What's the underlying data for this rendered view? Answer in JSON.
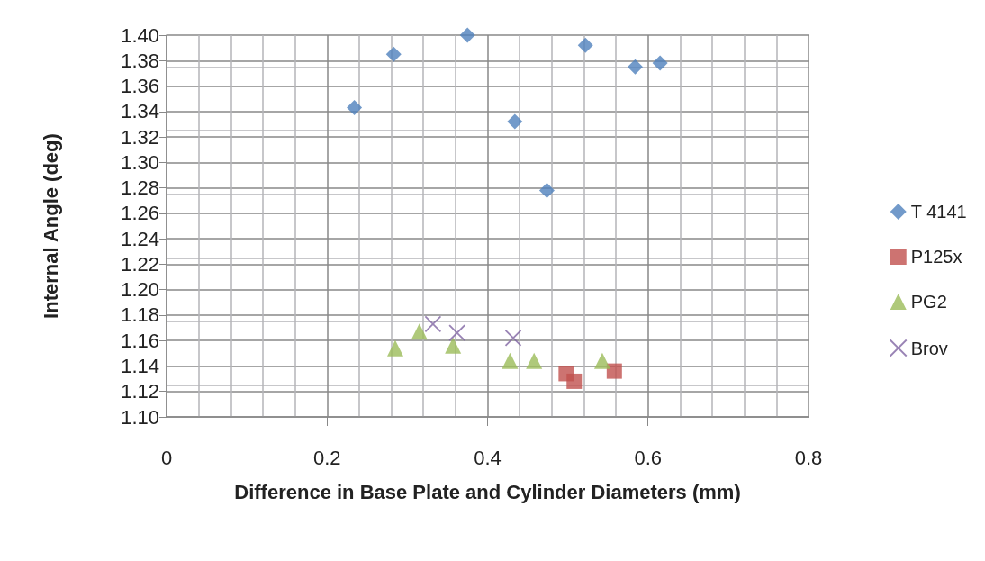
{
  "chart_data": {
    "type": "scatter",
    "xlabel": "Difference in Base Plate and Cylinder Diameters (mm)",
    "ylabel": "Internal Angle (deg)",
    "xlim": [
      0,
      0.8
    ],
    "xticks": [
      0,
      {
        "value": 0.2,
        "label": "0.2"
      },
      {
        "value": 0.4,
        "label": "0.4"
      },
      {
        "value": 0.6,
        "label": "0.6"
      },
      {
        "value": 0.8,
        "label": "0.8"
      }
    ],
    "ylim": [
      1.1,
      1.4
    ],
    "yticks": [
      {
        "value": 1.1,
        "label": "1.10"
      },
      {
        "value": 1.12,
        "label": "1.12"
      },
      {
        "value": 1.14,
        "label": "1.14"
      },
      {
        "value": 1.16,
        "label": "1.16"
      },
      {
        "value": 1.18,
        "label": "1.18"
      },
      {
        "value": 1.2,
        "label": "1.20"
      },
      {
        "value": 1.22,
        "label": "1.22"
      },
      {
        "value": 1.24,
        "label": "1.24"
      },
      {
        "value": 1.26,
        "label": "1.26"
      },
      {
        "value": 1.28,
        "label": "1.28"
      },
      {
        "value": 1.3,
        "label": "1.30"
      },
      {
        "value": 1.32,
        "label": "1.32"
      },
      {
        "value": 1.34,
        "label": "1.34"
      },
      {
        "value": 1.36,
        "label": "1.36"
      },
      {
        "value": 1.38,
        "label": "1.38"
      },
      {
        "value": 1.4,
        "label": "1.40"
      }
    ],
    "grid": true,
    "legend": "right",
    "series": [
      {
        "name": "T 4141",
        "color": "#4f81bd",
        "marker": "diamond",
        "x": [
          0.234,
          0.283,
          0.375,
          0.434,
          0.474,
          0.522,
          0.584,
          0.615
        ],
        "values": [
          1.343,
          1.385,
          1.4,
          1.332,
          1.278,
          1.392,
          1.375,
          1.378
        ]
      },
      {
        "name": "P125x",
        "color": "#c0504d",
        "marker": "square",
        "x": [
          0.498,
          0.508,
          0.558
        ],
        "values": [
          1.134,
          1.128,
          1.136
        ]
      },
      {
        "name": "PG2",
        "color": "#9bbb59",
        "marker": "triangle",
        "x": [
          0.285,
          0.315,
          0.357,
          0.428,
          0.458,
          0.543
        ],
        "values": [
          1.154,
          1.167,
          1.156,
          1.144,
          1.144,
          1.144
        ]
      },
      {
        "name": "Brov",
        "color": "#8064a2",
        "marker": "cross",
        "x": [
          0.332,
          0.362,
          0.432
        ],
        "values": [
          1.173,
          1.166,
          1.162
        ]
      }
    ]
  }
}
